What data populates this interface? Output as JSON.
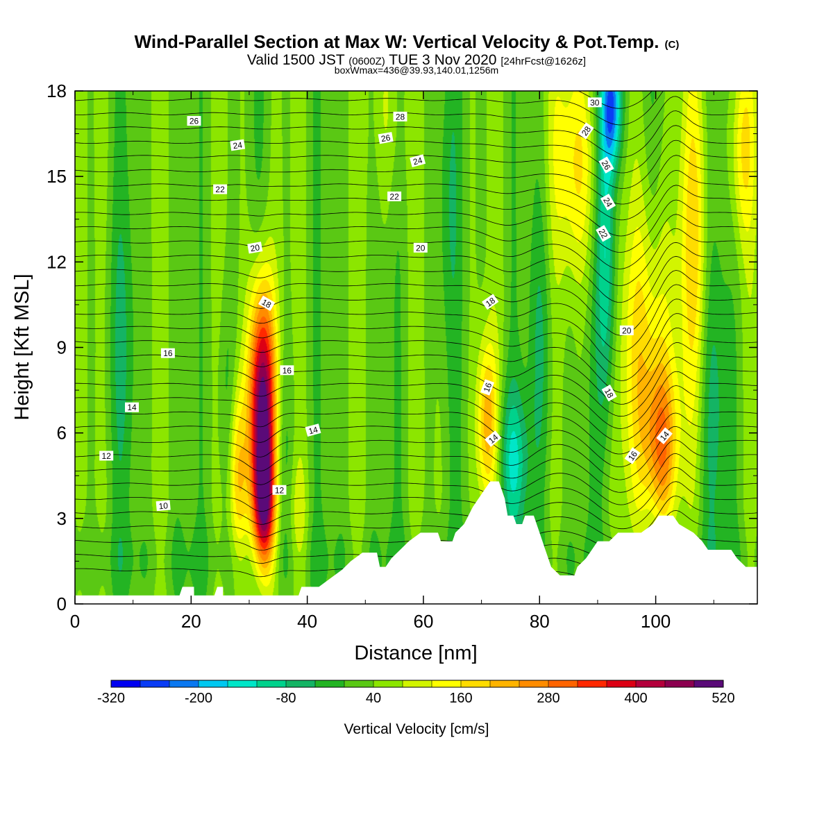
{
  "chart_data": {
    "type": "heatmap",
    "title": "Wind-Parallel Section at Max W: Vertical Velocity & Pot.Temp.",
    "title_mark": "(C)",
    "subtitle_parts": [
      "Valid 1500 JST",
      "(0600Z)",
      "TUE 3 Nov 2020",
      "[24hrFcst@1626z]"
    ],
    "subtitle2": "boxWmax=436@39.93,140.01,1256m",
    "xlabel": "Distance [nm]",
    "ylabel": "Height [Kft MSL]",
    "xlim": [
      0,
      117.5
    ],
    "ylim": [
      0,
      18
    ],
    "x_ticks": [
      "0",
      "20",
      "40",
      "60",
      "80",
      "100"
    ],
    "y_ticks": [
      "0",
      "3",
      "6",
      "9",
      "12",
      "15",
      "18"
    ],
    "colorbar": {
      "label": "Vertical Velocity [cm/s]",
      "tick_labels": [
        "-320",
        "-200",
        "-80",
        "40",
        "160",
        "280",
        "400",
        "520"
      ],
      "min": -320,
      "max": 520,
      "step": 40,
      "colors": [
        "#0000f0",
        "#0a3cf5",
        "#0a78f0",
        "#00c8f0",
        "#00e6c8",
        "#00d28c",
        "#14b464",
        "#23b423",
        "#5ac814",
        "#8ce600",
        "#d2f500",
        "#ffff00",
        "#ffdc00",
        "#ffb400",
        "#ff8c00",
        "#ff6400",
        "#ff2800",
        "#dc0014",
        "#b4003c",
        "#8c0050",
        "#5a0a78"
      ]
    },
    "terrain": [
      [
        0,
        0.3
      ],
      [
        18,
        0.3
      ],
      [
        18.5,
        0.6
      ],
      [
        20.5,
        0.6
      ],
      [
        20.5,
        0.3
      ],
      [
        24,
        0.3
      ],
      [
        24.5,
        0.6
      ],
      [
        25.5,
        0.6
      ],
      [
        25.5,
        0.3
      ],
      [
        29,
        0.3
      ],
      [
        38.5,
        0.3
      ],
      [
        39,
        0.6
      ],
      [
        42,
        0.6
      ],
      [
        44,
        0.9
      ],
      [
        46,
        1.2
      ],
      [
        47.5,
        1.5
      ],
      [
        49.5,
        1.8
      ],
      [
        52,
        1.8
      ],
      [
        52.5,
        1.3
      ],
      [
        53.5,
        1.3
      ],
      [
        54.5,
        1.6
      ],
      [
        56,
        1.9
      ],
      [
        57.5,
        2.2
      ],
      [
        59.5,
        2.5
      ],
      [
        62.5,
        2.5
      ],
      [
        63,
        2.2
      ],
      [
        65,
        2.2
      ],
      [
        65.5,
        2.5
      ],
      [
        67,
        2.8
      ],
      [
        68.5,
        3.4
      ],
      [
        69.5,
        3.7
      ],
      [
        70.5,
        4.0
      ],
      [
        71.5,
        4.3
      ],
      [
        73,
        4.3
      ],
      [
        74,
        3.7
      ],
      [
        74.5,
        3.1
      ],
      [
        75.5,
        3.1
      ],
      [
        76,
        2.8
      ],
      [
        77,
        2.8
      ],
      [
        77.5,
        3.1
      ],
      [
        79,
        3.1
      ],
      [
        80,
        2.5
      ],
      [
        81,
        1.9
      ],
      [
        82,
        1.3
      ],
      [
        83.5,
        1.0
      ],
      [
        86,
        1.0
      ],
      [
        86.5,
        1.3
      ],
      [
        88,
        1.6
      ],
      [
        89,
        1.9
      ],
      [
        90,
        2.2
      ],
      [
        92,
        2.2
      ],
      [
        93.5,
        2.5
      ],
      [
        97.5,
        2.5
      ],
      [
        99.5,
        2.8
      ],
      [
        100.5,
        3.1
      ],
      [
        103,
        3.1
      ],
      [
        104,
        2.8
      ],
      [
        106.5,
        2.5
      ],
      [
        108,
        2.2
      ],
      [
        109,
        1.9
      ],
      [
        113,
        1.9
      ],
      [
        114,
        1.6
      ],
      [
        115.5,
        1.3
      ],
      [
        116.5,
        1.3
      ],
      [
        117.5,
        1.3
      ]
    ],
    "updrafts": [
      {
        "x": 32.2,
        "y": 6.8,
        "sx": 1.6,
        "sy": 3.0,
        "w": 520
      },
      {
        "x": 32.5,
        "y": 3.3,
        "sx": 1.3,
        "sy": 1.6,
        "w": 300
      },
      {
        "x": 28.0,
        "y": 4.5,
        "sx": 1.1,
        "sy": 2.2,
        "w": 160
      },
      {
        "x": 71.0,
        "y": 6.4,
        "sx": 1.2,
        "sy": 2.0,
        "w": 190
      },
      {
        "x": 86.5,
        "y": 15.5,
        "sx": 3.0,
        "sy": 3.0,
        "w": 140
      },
      {
        "x": 98.5,
        "y": 8.5,
        "sx": 3.0,
        "sy": 4.0,
        "w": 160
      },
      {
        "x": 101.0,
        "y": 5.5,
        "sx": 2.0,
        "sy": 2.0,
        "w": 200
      },
      {
        "x": 106.5,
        "y": 12.5,
        "sx": 1.8,
        "sy": 4.5,
        "w": 130
      },
      {
        "x": 115.0,
        "y": 16.0,
        "sx": 1.5,
        "sy": 2.5,
        "w": 130
      },
      {
        "x": 54.0,
        "y": 17.5,
        "sx": 2.0,
        "sy": 2.5,
        "w": 60
      },
      {
        "x": 38.5,
        "y": 3.0,
        "sx": 1.2,
        "sy": 1.5,
        "w": 60
      }
    ],
    "downdrafts": [
      {
        "x": 75.5,
        "y": 5.0,
        "sx": 1.8,
        "sy": 1.8,
        "w": -140
      },
      {
        "x": 91.5,
        "y": 13.0,
        "sx": 1.2,
        "sy": 4.5,
        "w": -190
      },
      {
        "x": 92.5,
        "y": 17.5,
        "sx": 1.2,
        "sy": 1.5,
        "w": -260
      },
      {
        "x": 36.0,
        "y": 5.0,
        "sx": 1.2,
        "sy": 3.0,
        "w": -60
      },
      {
        "x": 26.0,
        "y": 7.0,
        "sx": 1.2,
        "sy": 3.0,
        "w": -60
      },
      {
        "x": 80.5,
        "y": 9.0,
        "sx": 1.5,
        "sy": 4.0,
        "w": -70
      },
      {
        "x": 110.0,
        "y": 7.0,
        "sx": 2.0,
        "sy": 4.0,
        "w": -70
      },
      {
        "x": 8.0,
        "y": 9.0,
        "sx": 2.0,
        "sy": 4.0,
        "w": -50
      },
      {
        "x": 64.0,
        "y": 14.0,
        "sx": 1.5,
        "sy": 4.0,
        "w": -50
      }
    ],
    "contour_labels": [
      {
        "text": "26",
        "x": 20.5,
        "y": 16.95,
        "rot": 0
      },
      {
        "text": "24",
        "x": 28.0,
        "y": 16.1,
        "rot": -8
      },
      {
        "text": "22",
        "x": 25.0,
        "y": 14.55,
        "rot": 0
      },
      {
        "text": "20",
        "x": 31.0,
        "y": 12.5,
        "rot": -10
      },
      {
        "text": "18",
        "x": 33.0,
        "y": 10.55,
        "rot": 30
      },
      {
        "text": "16",
        "x": 16.0,
        "y": 8.8,
        "rot": 0
      },
      {
        "text": "16",
        "x": 36.5,
        "y": 8.2,
        "rot": 0
      },
      {
        "text": "14",
        "x": 9.8,
        "y": 6.9,
        "rot": 0
      },
      {
        "text": "14",
        "x": 41.0,
        "y": 6.1,
        "rot": -15
      },
      {
        "text": "12",
        "x": 5.4,
        "y": 5.2,
        "rot": 0
      },
      {
        "text": "12",
        "x": 35.2,
        "y": 4.0,
        "rot": 0
      },
      {
        "text": "10",
        "x": 15.2,
        "y": 3.45,
        "rot": -5
      },
      {
        "text": "28",
        "x": 56.0,
        "y": 17.1,
        "rot": 0
      },
      {
        "text": "26",
        "x": 53.5,
        "y": 16.35,
        "rot": -10
      },
      {
        "text": "24",
        "x": 59.0,
        "y": 15.55,
        "rot": -15
      },
      {
        "text": "22",
        "x": 55.0,
        "y": 14.3,
        "rot": 0
      },
      {
        "text": "20",
        "x": 59.5,
        "y": 12.5,
        "rot": 0
      },
      {
        "text": "18",
        "x": 71.5,
        "y": 10.6,
        "rot": -35
      },
      {
        "text": "16",
        "x": 71.0,
        "y": 7.6,
        "rot": -70
      },
      {
        "text": "14",
        "x": 72.0,
        "y": 5.8,
        "rot": -40
      },
      {
        "text": "30",
        "x": 89.5,
        "y": 17.6,
        "rot": 0
      },
      {
        "text": "28",
        "x": 88.0,
        "y": 16.6,
        "rot": -55
      },
      {
        "text": "26",
        "x": 91.5,
        "y": 15.4,
        "rot": 60
      },
      {
        "text": "24",
        "x": 91.8,
        "y": 14.1,
        "rot": 60
      },
      {
        "text": "22",
        "x": 91.0,
        "y": 13.0,
        "rot": 60
      },
      {
        "text": "20",
        "x": 95.0,
        "y": 9.6,
        "rot": 0
      },
      {
        "text": "18",
        "x": 92.0,
        "y": 7.4,
        "rot": 60
      },
      {
        "text": "16",
        "x": 96.0,
        "y": 5.2,
        "rot": -55
      },
      {
        "text": "14",
        "x": 101.5,
        "y": 5.9,
        "rot": -50
      }
    ]
  }
}
